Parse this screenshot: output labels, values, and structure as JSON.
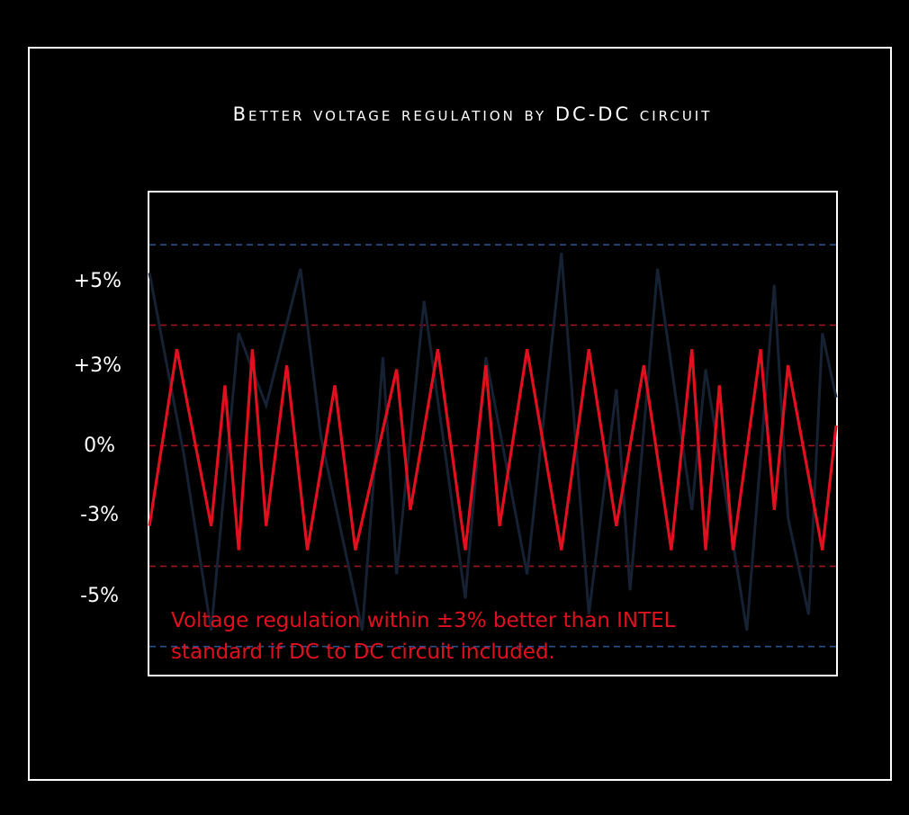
{
  "chart_data": {
    "type": "line",
    "title": "Better voltage regulation by DC-DC circuit",
    "y_ticks": [
      "+5%",
      "+3%",
      "0%",
      "-3%",
      "-5%"
    ],
    "ylim": [
      -5.7,
      6.3
    ],
    "reference_lines": [
      {
        "value": 5,
        "color": "#2a4f8a",
        "style": "dashed"
      },
      {
        "value": 3,
        "color": "#9b1520",
        "style": "dashed"
      },
      {
        "value": 0,
        "color": "#9b1520",
        "style": "dashed"
      },
      {
        "value": -3,
        "color": "#9b1520",
        "style": "dashed"
      },
      {
        "value": -5,
        "color": "#2a4f8a",
        "style": "dashed"
      }
    ],
    "series": [
      {
        "color": "#162233",
        "points": [
          [
            0,
            4.3
          ],
          [
            5,
            -0.2
          ],
          [
            9,
            -4.6
          ],
          [
            13,
            2.8
          ],
          [
            17,
            1.0
          ],
          [
            22,
            4.4
          ],
          [
            25,
            0.2
          ],
          [
            31,
            -4.6
          ],
          [
            34,
            2.2
          ],
          [
            36,
            -3.2
          ],
          [
            40,
            3.6
          ],
          [
            46,
            -3.8
          ],
          [
            49,
            2.2
          ],
          [
            55,
            -3.2
          ],
          [
            60,
            4.8
          ],
          [
            64,
            -4.2
          ],
          [
            68,
            1.4
          ],
          [
            70,
            -3.6
          ],
          [
            74,
            4.4
          ],
          [
            79,
            -1.6
          ],
          [
            81,
            1.9
          ],
          [
            87,
            -4.6
          ],
          [
            91,
            4.0
          ],
          [
            93,
            -1.8
          ],
          [
            96,
            -4.2
          ],
          [
            98,
            2.8
          ],
          [
            100,
            1.2
          ]
        ]
      },
      {
        "color": "#e0101e",
        "points": [
          [
            0,
            -2.0
          ],
          [
            4,
            2.4
          ],
          [
            9,
            -2.0
          ],
          [
            11,
            1.5
          ],
          [
            13,
            -2.6
          ],
          [
            15,
            2.4
          ],
          [
            17,
            -2.0
          ],
          [
            20,
            2.0
          ],
          [
            23,
            -2.6
          ],
          [
            27,
            1.5
          ],
          [
            30,
            -2.6
          ],
          [
            36,
            1.9
          ],
          [
            38,
            -1.6
          ],
          [
            42,
            2.4
          ],
          [
            46,
            -2.6
          ],
          [
            49,
            2.0
          ],
          [
            51,
            -2.0
          ],
          [
            55,
            2.4
          ],
          [
            60,
            -2.6
          ],
          [
            64,
            2.4
          ],
          [
            68,
            -2.0
          ],
          [
            72,
            2.0
          ],
          [
            76,
            -2.6
          ],
          [
            79,
            2.4
          ],
          [
            81,
            -2.6
          ],
          [
            83,
            1.5
          ],
          [
            85,
            -2.6
          ],
          [
            89,
            2.4
          ],
          [
            91,
            -1.6
          ],
          [
            93,
            2.0
          ],
          [
            98,
            -2.6
          ],
          [
            100,
            0.5
          ]
        ]
      }
    ],
    "annotation": [
      "Voltage regulation within ±3% better than INTEL",
      "standard if DC to DC circuit included."
    ]
  }
}
